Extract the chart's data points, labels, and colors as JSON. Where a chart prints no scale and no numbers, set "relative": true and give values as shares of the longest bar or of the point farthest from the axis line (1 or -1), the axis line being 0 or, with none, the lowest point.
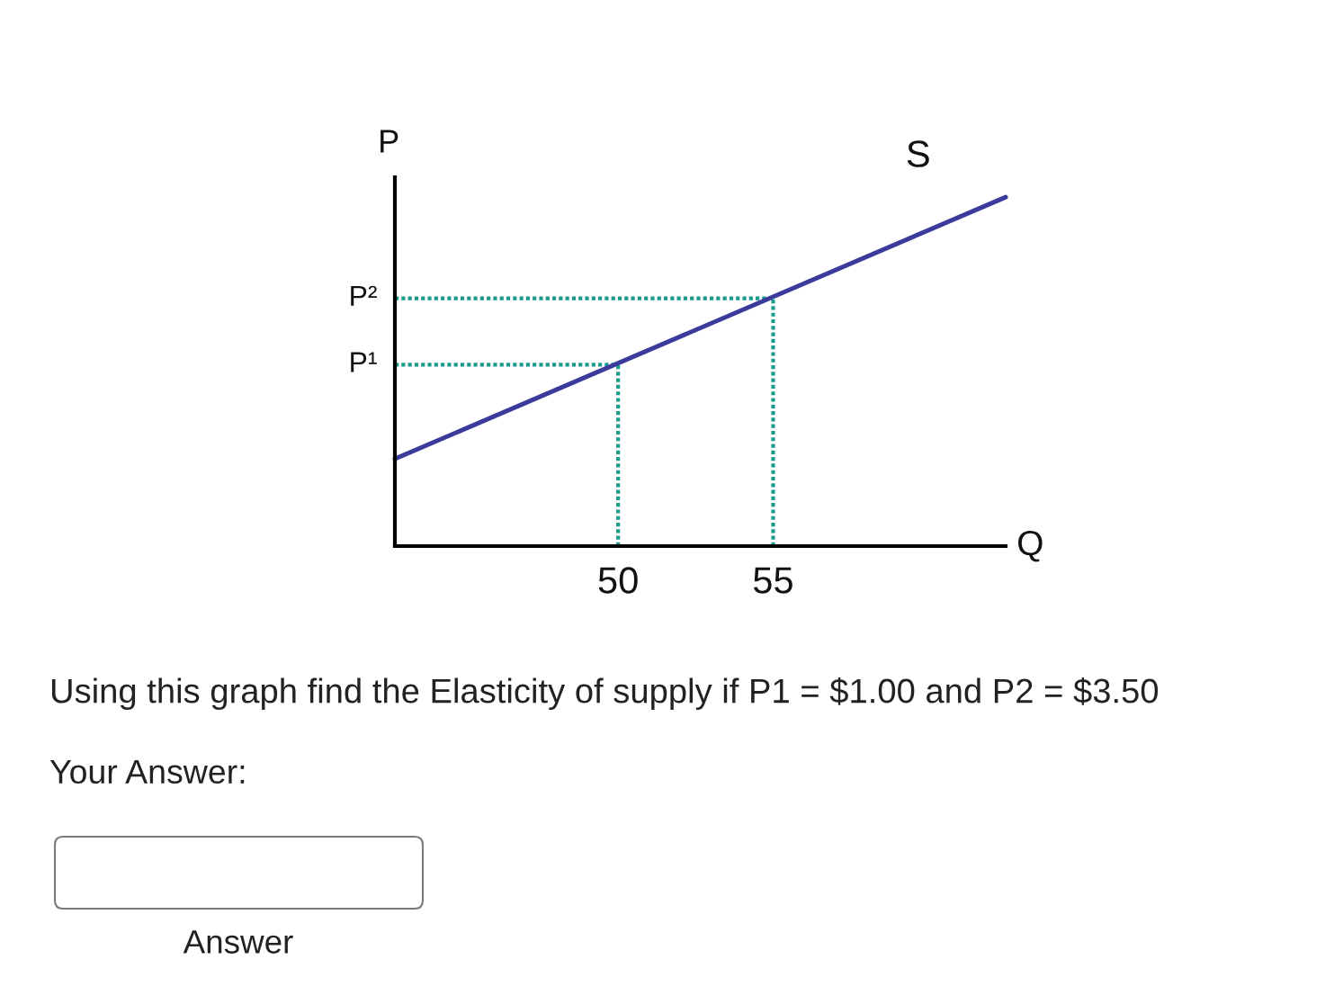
{
  "chart_data": {
    "type": "line",
    "relative": true,
    "xlabel": "Q",
    "ylabel": "P",
    "xlim": [
      42.8,
      62.5
    ],
    "xticks": [
      50,
      55
    ],
    "series": [
      {
        "name": "S",
        "color": "#3b3b9d",
        "x": [
          42.8,
          62.5
        ],
        "values": [
          0.25,
          1
        ]
      }
    ],
    "ref_lines": [
      {
        "axis": "y",
        "value": 0.52,
        "label": "P¹",
        "color": "#179c8c",
        "line_style": "dotted"
      },
      {
        "axis": "y",
        "value": 0.71,
        "label": "P²",
        "color": "#179c8c",
        "line_style": "dotted"
      },
      {
        "axis": "x",
        "value": 50,
        "color": "#179c8c",
        "line_style": "dotted"
      },
      {
        "axis": "x",
        "value": 55,
        "color": "#179c8c",
        "line_style": "dotted"
      }
    ],
    "annotations": [
      "Using this graph find the Elasticity of supply if P1 = $1.00 and P2 = $3.50",
      "Your Answer:",
      "Answer"
    ]
  }
}
